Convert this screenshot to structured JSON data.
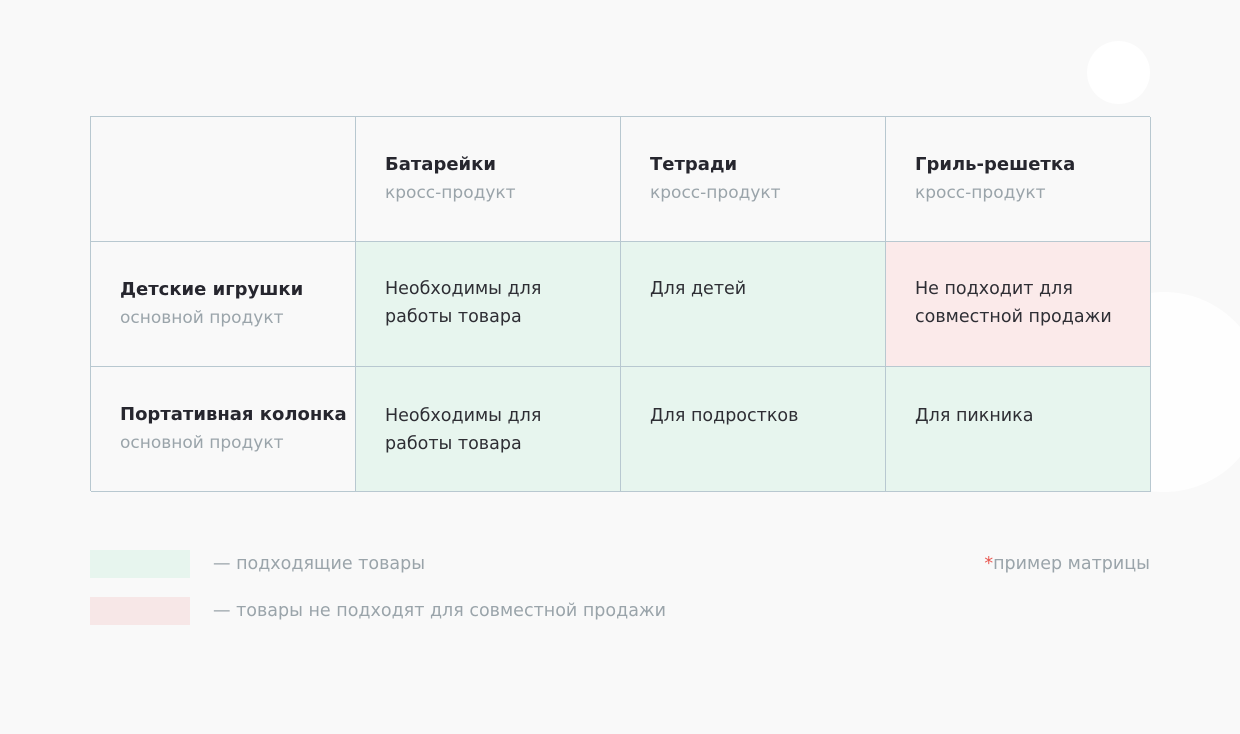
{
  "colors": {
    "match": "#e7f5ee",
    "no_match": "#fbeaea",
    "border": "#b8c8d0",
    "muted_text": "#9aa4aa",
    "asterisk": "#e8564f"
  },
  "matrix": {
    "columns": [
      {
        "title": "Батарейки",
        "subtitle": "кросс-продукт"
      },
      {
        "title": "Тетради",
        "subtitle": "кросс-продукт"
      },
      {
        "title": "Гриль-решетка",
        "subtitle": "кросс-продукт"
      }
    ],
    "rows": [
      {
        "title": "Детские игрушки",
        "subtitle": "основной продукт",
        "cells": [
          {
            "text": "Необходимы для работы товара",
            "status": "match"
          },
          {
            "text": "Для детей",
            "status": "match"
          },
          {
            "text": "Не подходит для совместной продажи",
            "status": "no_match"
          }
        ]
      },
      {
        "title": "Портативная колонка",
        "subtitle": "основной продукт",
        "cells": [
          {
            "text": "Необходимы для работы товара",
            "status": "match"
          },
          {
            "text": "Для подростков",
            "status": "match"
          },
          {
            "text": "Для пикника",
            "status": "match"
          }
        ]
      }
    ]
  },
  "legend": {
    "match_label": "— подходящие товары",
    "no_match_label": "— товары не подходят для совместной продажи"
  },
  "note": {
    "asterisk": "*",
    "text": "пример матрицы"
  }
}
